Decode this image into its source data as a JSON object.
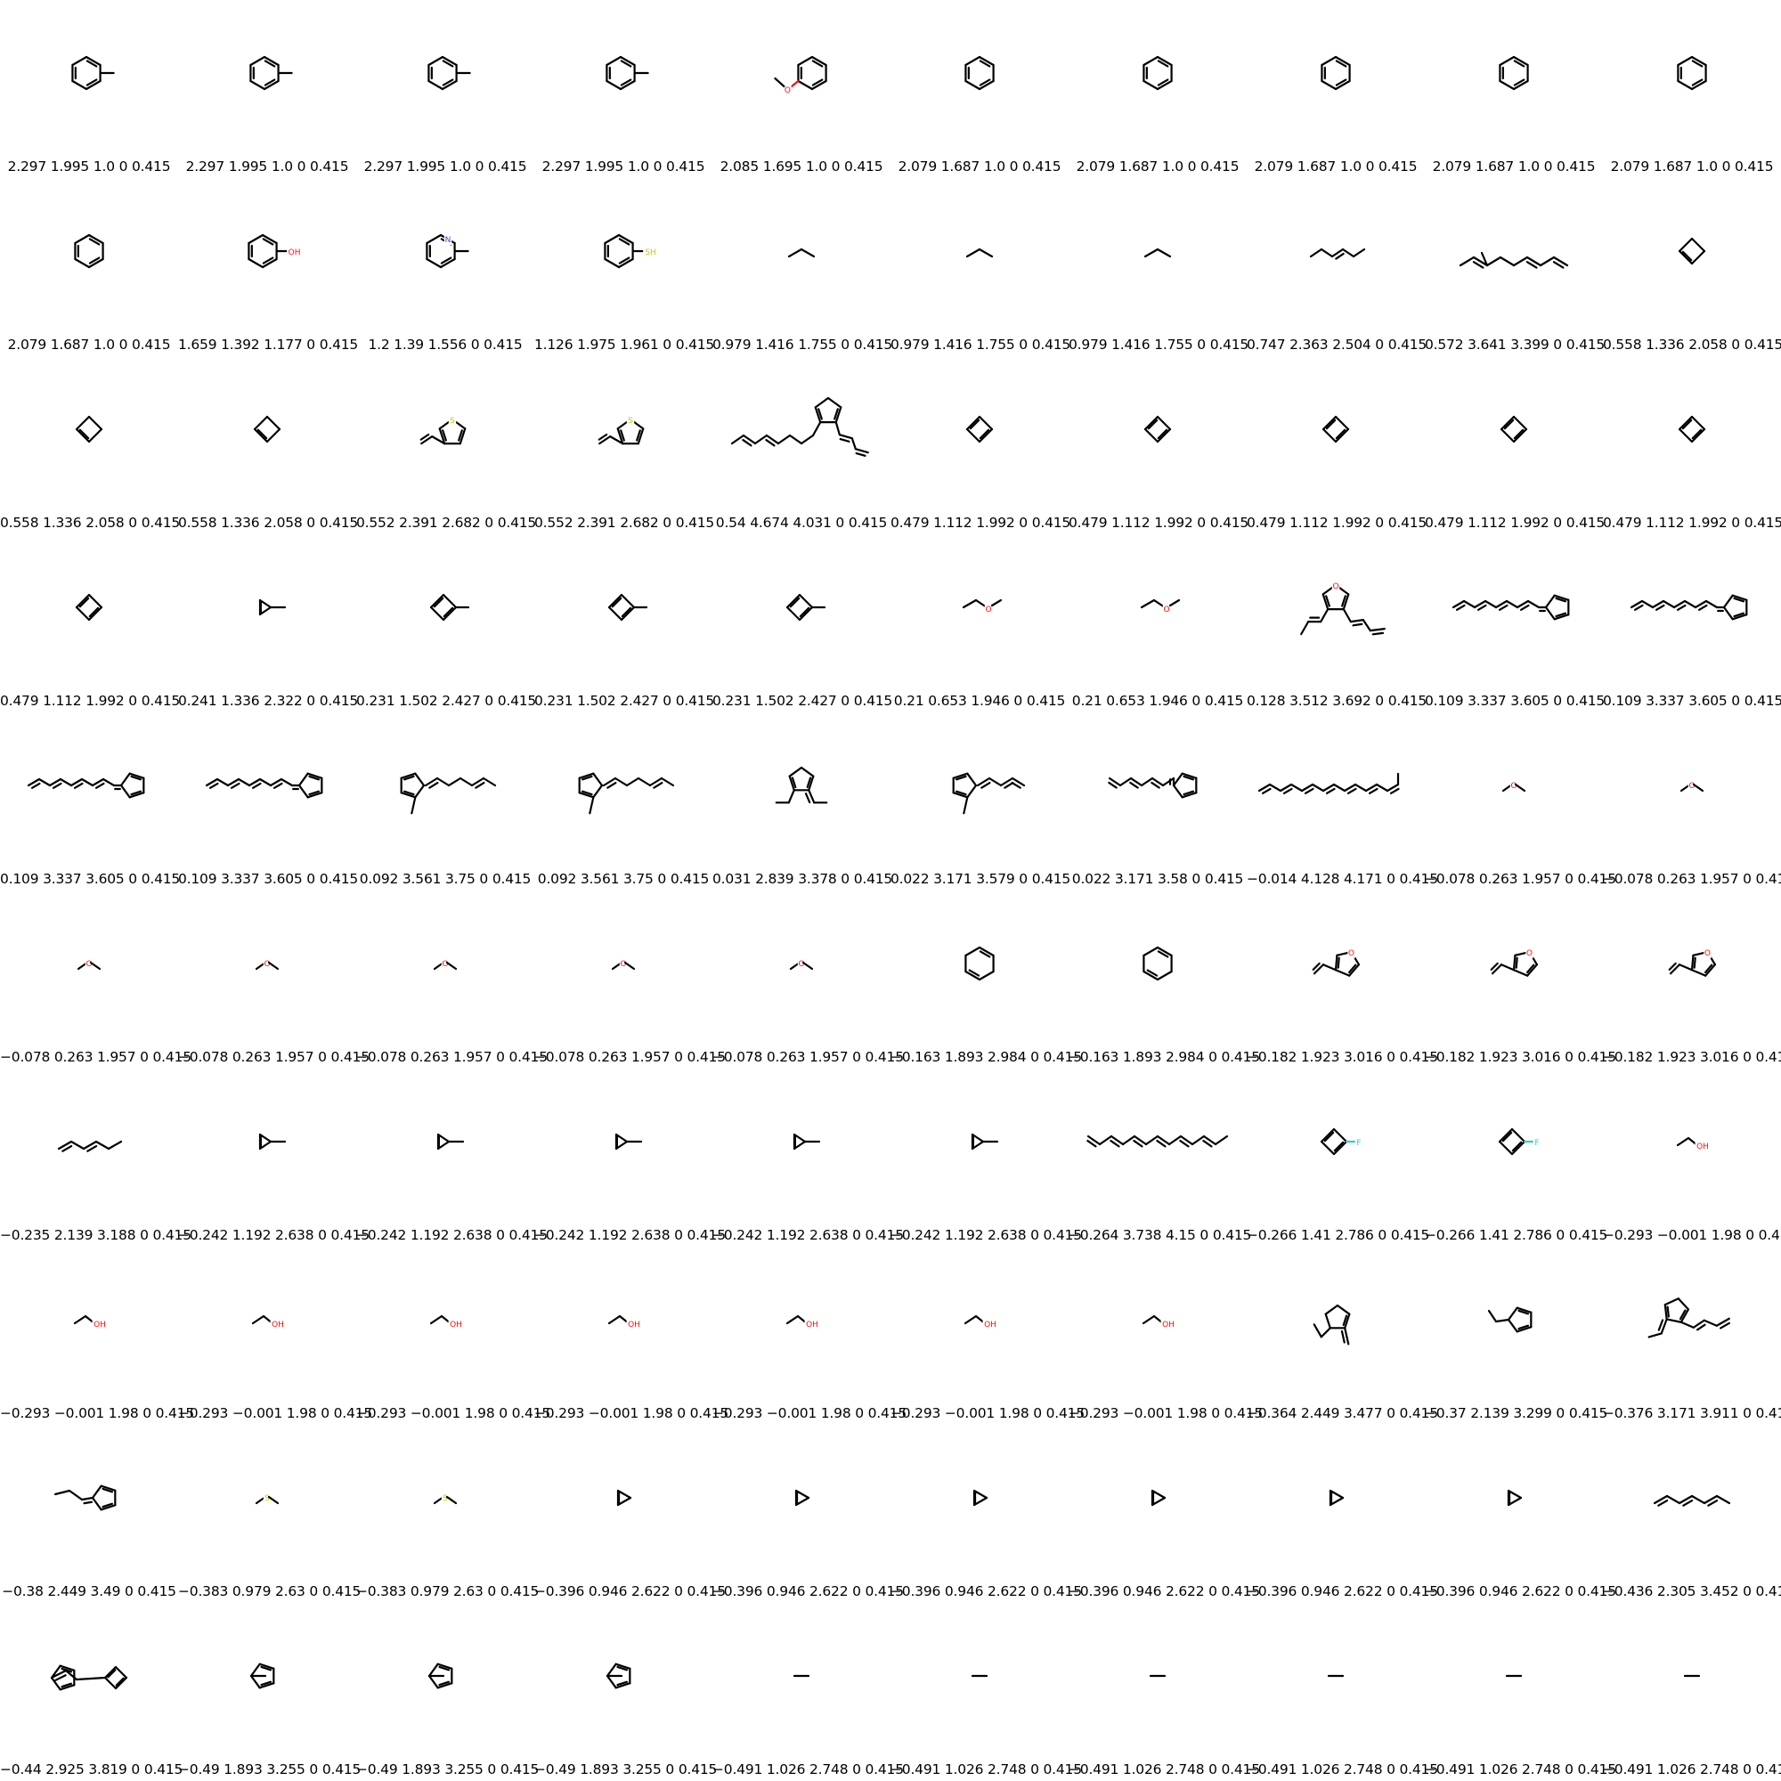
{
  "grid": {
    "cells": [
      {
        "label": "2.297 1.995 1.0 0 0.415",
        "molecule": "toluene"
      },
      {
        "label": "2.297 1.995 1.0 0 0.415",
        "molecule": "toluene"
      },
      {
        "label": "2.297 1.995 1.0 0 0.415",
        "molecule": "toluene"
      },
      {
        "label": "2.297 1.995 1.0 0 0.415",
        "molecule": "toluene"
      },
      {
        "label": "2.085 1.695 1.0 0 0.415",
        "molecule": "anisole"
      },
      {
        "label": "2.079 1.687 1.0 0 0.415",
        "molecule": "benzene"
      },
      {
        "label": "2.079 1.687 1.0 0 0.415",
        "molecule": "benzene"
      },
      {
        "label": "2.079 1.687 1.0 0 0.415",
        "molecule": "benzene"
      },
      {
        "label": "2.079 1.687 1.0 0 0.415",
        "molecule": "benzene"
      },
      {
        "label": "2.079 1.687 1.0 0 0.415",
        "molecule": "benzene"
      },
      {
        "label": "2.079 1.687 1.0 0 0.415",
        "molecule": "benzene"
      },
      {
        "label": "1.659 1.392 1.177 0 0.415",
        "molecule": "phenol",
        "atom_label": "OH"
      },
      {
        "label": "1.2 1.39 1.556 0 0.415",
        "molecule": "methylpyridine",
        "atom_label": "N"
      },
      {
        "label": "1.126 1.975 1.961 0 0.415",
        "molecule": "thiophenol",
        "atom_label": "SH"
      },
      {
        "label": "0.979 1.416 1.755 0 0.415",
        "molecule": "propane"
      },
      {
        "label": "0.979 1.416 1.755 0 0.415",
        "molecule": "propane"
      },
      {
        "label": "0.979 1.416 1.755 0 0.415",
        "molecule": "propane"
      },
      {
        "label": "0.747 2.363 2.504 0 0.415",
        "molecule": "hexene"
      },
      {
        "label": "0.572 3.641 3.399 0 0.415",
        "molecule": "triene-long"
      },
      {
        "label": "0.558 1.336 2.058 0 0.415",
        "molecule": "cyclobutene"
      },
      {
        "label": "0.558 1.336 2.058 0 0.415",
        "molecule": "cyclobutene"
      },
      {
        "label": "0.558 1.336 2.058 0 0.415",
        "molecule": "cyclobutene"
      },
      {
        "label": "0.552 2.391 2.682 0 0.415",
        "molecule": "vinylthiophene",
        "atom_label": "S"
      },
      {
        "label": "0.552 2.391 2.682 0 0.415",
        "molecule": "vinylthiophene",
        "atom_label": "S"
      },
      {
        "label": "0.54 4.674 4.031 0 0.415",
        "molecule": "fulvene-long"
      },
      {
        "label": "0.479 1.112 1.992 0 0.415",
        "molecule": "cyclobutadiene"
      },
      {
        "label": "0.479 1.112 1.992 0 0.415",
        "molecule": "cyclobutadiene"
      },
      {
        "label": "0.479 1.112 1.992 0 0.415",
        "molecule": "cyclobutadiene"
      },
      {
        "label": "0.479 1.112 1.992 0 0.415",
        "molecule": "cyclobutadiene"
      },
      {
        "label": "0.479 1.112 1.992 0 0.415",
        "molecule": "cyclobutadiene"
      },
      {
        "label": "0.479 1.112 1.992 0 0.415",
        "molecule": "cyclobutadiene"
      },
      {
        "label": "0.241 1.336 2.322 0 0.415",
        "molecule": "methylcyclopropene"
      },
      {
        "label": "0.231 1.502 2.427 0 0.415",
        "molecule": "methylcyclobutadiene"
      },
      {
        "label": "0.231 1.502 2.427 0 0.415",
        "molecule": "methylcyclobutadiene"
      },
      {
        "label": "0.231 1.502 2.427 0 0.415",
        "molecule": "methylcyclobutadiene"
      },
      {
        "label": "0.21 0.653 1.946 0 0.415",
        "molecule": "ethyl-methyl-ether",
        "atom_label": "O"
      },
      {
        "label": "0.21 0.653 1.946 0 0.415",
        "molecule": "ethyl-methyl-ether",
        "atom_label": "O"
      },
      {
        "label": "0.128 3.512 3.692 0 0.415",
        "molecule": "furan-dienes",
        "atom_label": "O"
      },
      {
        "label": "0.109 3.337 3.605 0 0.415",
        "molecule": "fulvene-chain"
      },
      {
        "label": "0.109 3.337 3.605 0 0.415",
        "molecule": "fulvene-chain"
      },
      {
        "label": "0.109 3.337 3.605 0 0.415",
        "molecule": "fulvene-chain"
      },
      {
        "label": "0.109 3.337 3.605 0 0.415",
        "molecule": "fulvene-chain"
      },
      {
        "label": "0.092 3.561 3.75 0 0.415",
        "molecule": "methylfulvene-chain"
      },
      {
        "label": "0.092 3.561 3.75 0 0.415",
        "molecule": "methylfulvene-chain"
      },
      {
        "label": "0.031 2.839 3.378 0 0.415",
        "molecule": "diethylfulvene"
      },
      {
        "label": "0.022 3.171 3.579 0 0.415",
        "molecule": "methylfulvene-diene"
      },
      {
        "label": "0.022 3.171 3.58 0 0.415",
        "molecule": "fulvene-short-chain"
      },
      {
        "label": "−0.014 4.128 4.171 0 0.415",
        "molecule": "polyene-long"
      },
      {
        "label": "−0.078 0.263 1.957 0 0.415",
        "molecule": "dimethyl-ether",
        "atom_label": "O"
      },
      {
        "label": "−0.078 0.263 1.957 0 0.415",
        "molecule": "dimethyl-ether",
        "atom_label": "O"
      },
      {
        "label": "−0.078 0.263 1.957 0 0.415",
        "molecule": "dimethyl-ether",
        "atom_label": "O"
      },
      {
        "label": "−0.078 0.263 1.957 0 0.415",
        "molecule": "dimethyl-ether",
        "atom_label": "O"
      },
      {
        "label": "−0.078 0.263 1.957 0 0.415",
        "molecule": "dimethyl-ether",
        "atom_label": "O"
      },
      {
        "label": "−0.078 0.263 1.957 0 0.415",
        "molecule": "dimethyl-ether",
        "atom_label": "O"
      },
      {
        "label": "−0.078 0.263 1.957 0 0.415",
        "molecule": "dimethyl-ether",
        "atom_label": "O"
      },
      {
        "label": "−0.163 1.893 2.984 0 0.415",
        "molecule": "cyclohexadiene"
      },
      {
        "label": "−0.163 1.893 2.984 0 0.415",
        "molecule": "cyclohexadiene"
      },
      {
        "label": "−0.182 1.923 3.016 0 0.415",
        "molecule": "vinylfuran",
        "atom_label": "O"
      },
      {
        "label": "−0.182 1.923 3.016 0 0.415",
        "molecule": "vinylfuran",
        "atom_label": "O"
      },
      {
        "label": "−0.182 1.923 3.016 0 0.415",
        "molecule": "vinylfuran",
        "atom_label": "O"
      },
      {
        "label": "−0.235 2.139 3.188 0 0.415",
        "molecule": "hexadiene"
      },
      {
        "label": "−0.242 1.192 2.638 0 0.415",
        "molecule": "methylcyclopropene"
      },
      {
        "label": "−0.242 1.192 2.638 0 0.415",
        "molecule": "methylcyclopropene"
      },
      {
        "label": "−0.242 1.192 2.638 0 0.415",
        "molecule": "methylcyclopropene"
      },
      {
        "label": "−0.242 1.192 2.638 0 0.415",
        "molecule": "methylcyclopropene"
      },
      {
        "label": "−0.242 1.192 2.638 0 0.415",
        "molecule": "methylcyclopropene"
      },
      {
        "label": "−0.264 3.738 4.15 0 0.415",
        "molecule": "polyene"
      },
      {
        "label": "−0.266 1.41 2.786 0 0.415",
        "molecule": "fluorocyclobutadiene",
        "atom_label": "F"
      },
      {
        "label": "−0.266 1.41 2.786 0 0.415",
        "molecule": "fluorocyclobutadiene",
        "atom_label": "F"
      },
      {
        "label": "−0.293 −0.001 1.98 0 0.415",
        "molecule": "ethanol",
        "atom_label": "OH"
      },
      {
        "label": "−0.293 −0.001 1.98 0 0.415",
        "molecule": "ethanol",
        "atom_label": "OH"
      },
      {
        "label": "−0.293 −0.001 1.98 0 0.415",
        "molecule": "ethanol",
        "atom_label": "OH"
      },
      {
        "label": "−0.293 −0.001 1.98 0 0.415",
        "molecule": "ethanol",
        "atom_label": "OH"
      },
      {
        "label": "−0.293 −0.001 1.98 0 0.415",
        "molecule": "ethanol",
        "atom_label": "OH"
      },
      {
        "label": "−0.293 −0.001 1.98 0 0.415",
        "molecule": "ethanol",
        "atom_label": "OH"
      },
      {
        "label": "−0.293 −0.001 1.98 0 0.415",
        "molecule": "ethanol",
        "atom_label": "OH"
      },
      {
        "label": "−0.293 −0.001 1.98 0 0.415",
        "molecule": "ethanol",
        "atom_label": "OH"
      },
      {
        "label": "−0.364 2.449 3.477 0 0.415",
        "molecule": "ethyl-methylene-cyclopentadiene"
      },
      {
        "label": "−0.37 2.139 3.299 0 0.415",
        "molecule": "ethylcyclopentadiene"
      },
      {
        "label": "−0.376 3.171 3.911 0 0.415",
        "molecule": "ethylidene-cp-diene"
      },
      {
        "label": "−0.38 2.449 3.49 0 0.415",
        "molecule": "propylidene-cp"
      },
      {
        "label": "−0.383 0.979 2.63 0 0.415",
        "molecule": "dimethyl-sulfide",
        "atom_label": "S"
      },
      {
        "label": "−0.383 0.979 2.63 0 0.415",
        "molecule": "dimethyl-sulfide",
        "atom_label": "S"
      },
      {
        "label": "−0.396 0.946 2.622 0 0.415",
        "molecule": "cyclopropene"
      },
      {
        "label": "−0.396 0.946 2.622 0 0.415",
        "molecule": "cyclopropene"
      },
      {
        "label": "−0.396 0.946 2.622 0 0.415",
        "molecule": "cyclopropene"
      },
      {
        "label": "−0.396 0.946 2.622 0 0.415",
        "molecule": "cyclopropene"
      },
      {
        "label": "−0.396 0.946 2.622 0 0.415",
        "molecule": "cyclopropene"
      },
      {
        "label": "−0.396 0.946 2.622 0 0.415",
        "molecule": "cyclopropene"
      },
      {
        "label": "−0.436 2.305 3.452 0 0.415",
        "molecule": "hexadiene-long"
      },
      {
        "label": "−0.44 2.925 3.819 0 0.415",
        "molecule": "fulvene-cyclobutadiene"
      },
      {
        "label": "−0.49 1.893 3.255 0 0.415",
        "molecule": "methylcyclopentadiene"
      },
      {
        "label": "−0.49 1.893 3.255 0 0.415",
        "molecule": "methylcyclopentadiene"
      },
      {
        "label": "−0.49 1.893 3.255 0 0.415",
        "molecule": "methylcyclopentadiene"
      },
      {
        "label": "−0.491 1.026 2.748 0 0.415",
        "molecule": "ethane"
      },
      {
        "label": "−0.491 1.026 2.748 0 0.415",
        "molecule": "ethane"
      },
      {
        "label": "−0.491 1.026 2.748 0 0.415",
        "molecule": "ethane"
      },
      {
        "label": "−0.491 1.026 2.748 0 0.415",
        "molecule": "ethane"
      },
      {
        "label": "−0.491 1.026 2.748 0 0.415",
        "molecule": "ethane"
      },
      {
        "label": "−0.491 1.026 2.748 0 0.415",
        "molecule": "ethane"
      }
    ]
  },
  "colors": {
    "bond": "#000000",
    "oxygen": "#ff0d0d",
    "nitrogen": "#3050f8",
    "sulfur": "#c8c800",
    "fluorine": "#33cccc",
    "background": "#ffffff"
  }
}
